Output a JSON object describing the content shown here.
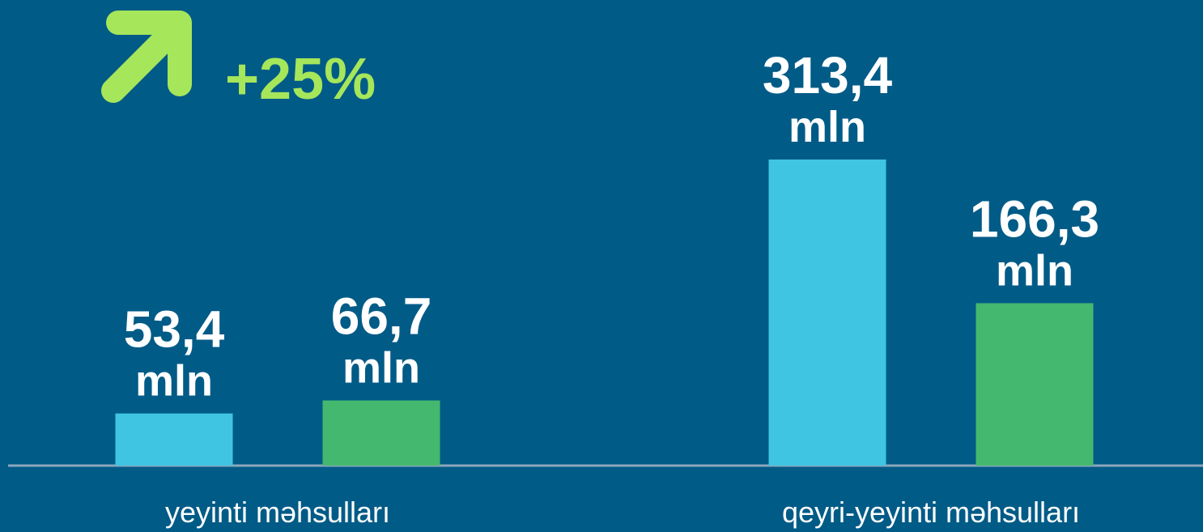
{
  "chart_data": {
    "type": "bar",
    "annotation": "+25%",
    "annotation_color": "#a6e65a",
    "categories": [
      "yeyinti məhsulları",
      "qeyri-yeyinti məhsulları"
    ],
    "unit_label": "mln",
    "series": [
      {
        "color": "#3fc5e2",
        "values": [
          53.4,
          313.4
        ],
        "value_labels": [
          "53,4",
          "313,4"
        ]
      },
      {
        "color": "#45b86f",
        "values": [
          66.7,
          166.3
        ],
        "value_labels": [
          "66,7",
          "166,3"
        ]
      }
    ]
  }
}
